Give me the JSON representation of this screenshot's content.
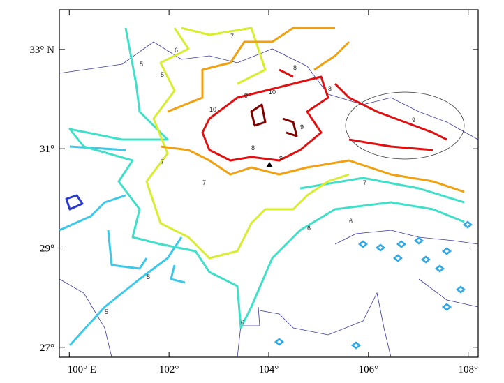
{
  "map": {
    "xlim": [
      99.8,
      108.2
    ],
    "ylim": [
      26.8,
      33.8
    ],
    "xticks": [
      {
        "value": 100,
        "label": "100° E"
      },
      {
        "value": 102,
        "label": "102°"
      },
      {
        "value": 104,
        "label": "104°"
      },
      {
        "value": 106,
        "label": "106°"
      },
      {
        "value": 108,
        "label": "108°"
      }
    ],
    "yticks": [
      {
        "value": 33,
        "label": "33° N"
      },
      {
        "value": 31,
        "label": "31°"
      },
      {
        "value": 29,
        "label": "29°"
      },
      {
        "value": 27,
        "label": "27°"
      }
    ],
    "contour_labels": [
      9,
      10,
      8,
      7,
      6,
      5
    ]
  }
}
